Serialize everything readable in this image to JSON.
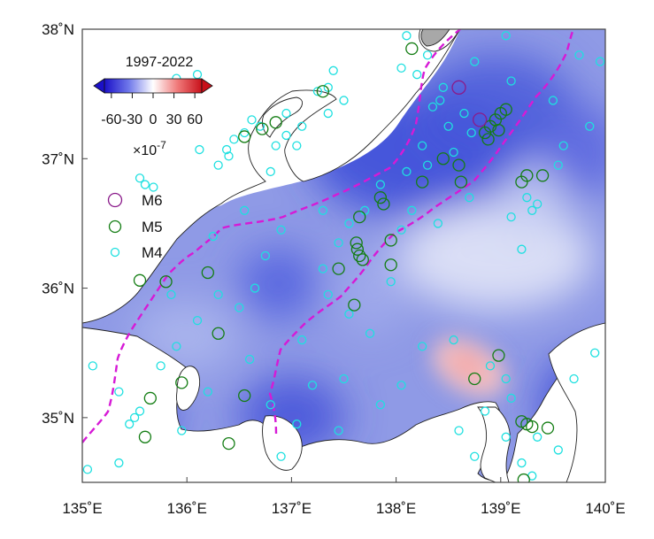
{
  "map": {
    "lon_range": [
      135,
      140
    ],
    "lat_range": [
      34.5,
      38
    ],
    "x_ticks": [
      {
        "value": 135,
        "label": "135˚E"
      },
      {
        "value": 136,
        "label": "136˚E"
      },
      {
        "value": 137,
        "label": "137˚E"
      },
      {
        "value": 138,
        "label": "138˚E"
      },
      {
        "value": 139,
        "label": "139˚E"
      },
      {
        "value": 140,
        "label": "140˚E"
      }
    ],
    "y_ticks": [
      {
        "value": 35,
        "label": "35˚N"
      },
      {
        "value": 36,
        "label": "36˚N"
      },
      {
        "value": 37,
        "label": "37˚N"
      },
      {
        "value": 38,
        "label": "38˚N"
      }
    ],
    "colors": {
      "field_low": "#2b3fd6",
      "field_mid": "#dfe4f7",
      "field_high": "#f3b6b6",
      "land": "#ffffff",
      "coast": "#222222",
      "fault_lines": "#d61ad6",
      "m6": "#8a1a8a",
      "m5": "#137d13",
      "m4": "#1ee0e0"
    }
  },
  "colorbar": {
    "title": "1997-2022",
    "tick_labels": [
      "-60",
      "-30",
      "0",
      "30",
      "60"
    ],
    "tick_values": [
      -60,
      -30,
      0,
      30,
      60
    ],
    "range": [
      -70,
      70
    ],
    "scale_label": "×10",
    "scale_exp": "-7"
  },
  "legend": {
    "items": [
      {
        "label": "M6",
        "color": "#8a1a8a"
      },
      {
        "label": "M5",
        "color": "#137d13"
      },
      {
        "label": "M4",
        "color": "#1ee0e0"
      }
    ]
  },
  "chart_data": {
    "type": "map",
    "title": "1997-2022",
    "colorbar_range": [
      -60,
      60
    ],
    "colorbar_unit": "×10^-7",
    "xlim": [
      135,
      140
    ],
    "ylim": [
      34.5,
      38
    ],
    "strain_field_samples": [
      {
        "lon": 138.3,
        "lat": 37.1,
        "value": -55
      },
      {
        "lon": 138.9,
        "lat": 37.3,
        "value": -45
      },
      {
        "lon": 136.8,
        "lat": 36.1,
        "value": -40
      },
      {
        "lon": 135.4,
        "lat": 35.0,
        "value": -45
      },
      {
        "lon": 137.1,
        "lat": 34.9,
        "value": -45
      },
      {
        "lon": 139.8,
        "lat": 35.0,
        "value": -45
      },
      {
        "lon": 138.7,
        "lat": 35.3,
        "value": 25
      },
      {
        "lon": 139.5,
        "lat": 36.3,
        "value": -5
      },
      {
        "lon": 139.6,
        "lat": 37.3,
        "value": -30
      }
    ],
    "earthquakes_m6": [
      {
        "lon": 138.6,
        "lat": 37.55
      },
      {
        "lon": 138.8,
        "lat": 37.3
      }
    ],
    "earthquakes_m5": [
      {
        "lon": 137.3,
        "lat": 37.52
      },
      {
        "lon": 136.72,
        "lat": 37.23
      },
      {
        "lon": 136.55,
        "lat": 37.17
      },
      {
        "lon": 136.85,
        "lat": 37.28
      },
      {
        "lon": 138.15,
        "lat": 37.85
      },
      {
        "lon": 138.25,
        "lat": 36.82
      },
      {
        "lon": 138.45,
        "lat": 37.0
      },
      {
        "lon": 138.6,
        "lat": 36.95
      },
      {
        "lon": 138.62,
        "lat": 36.82
      },
      {
        "lon": 138.85,
        "lat": 37.2
      },
      {
        "lon": 138.9,
        "lat": 37.25
      },
      {
        "lon": 138.95,
        "lat": 37.3
      },
      {
        "lon": 139.0,
        "lat": 37.35
      },
      {
        "lon": 139.05,
        "lat": 37.38
      },
      {
        "lon": 138.98,
        "lat": 37.22
      },
      {
        "lon": 138.88,
        "lat": 37.15
      },
      {
        "lon": 137.65,
        "lat": 36.55
      },
      {
        "lon": 137.62,
        "lat": 36.35
      },
      {
        "lon": 137.65,
        "lat": 36.25
      },
      {
        "lon": 137.68,
        "lat": 36.22
      },
      {
        "lon": 137.63,
        "lat": 36.3
      },
      {
        "lon": 137.45,
        "lat": 36.15
      },
      {
        "lon": 137.95,
        "lat": 36.18
      },
      {
        "lon": 137.95,
        "lat": 36.37
      },
      {
        "lon": 137.88,
        "lat": 36.65
      },
      {
        "lon": 137.85,
        "lat": 36.7
      },
      {
        "lon": 137.6,
        "lat": 35.87
      },
      {
        "lon": 135.8,
        "lat": 36.05
      },
      {
        "lon": 135.55,
        "lat": 36.06
      },
      {
        "lon": 136.2,
        "lat": 36.12
      },
      {
        "lon": 136.3,
        "lat": 35.65
      },
      {
        "lon": 135.95,
        "lat": 35.27
      },
      {
        "lon": 135.65,
        "lat": 35.15
      },
      {
        "lon": 136.55,
        "lat": 35.17
      },
      {
        "lon": 135.6,
        "lat": 34.85
      },
      {
        "lon": 136.4,
        "lat": 34.8
      },
      {
        "lon": 139.25,
        "lat": 36.87
      },
      {
        "lon": 139.4,
        "lat": 36.87
      },
      {
        "lon": 139.2,
        "lat": 36.82
      },
      {
        "lon": 138.75,
        "lat": 35.3
      },
      {
        "lon": 138.98,
        "lat": 35.48
      },
      {
        "lon": 139.2,
        "lat": 34.97
      },
      {
        "lon": 139.25,
        "lat": 34.95
      },
      {
        "lon": 139.3,
        "lat": 34.93
      },
      {
        "lon": 139.45,
        "lat": 34.92
      },
      {
        "lon": 139.22,
        "lat": 34.52
      }
    ],
    "earthquakes_m4": [
      {
        "lon": 136.55,
        "lat": 37.2
      },
      {
        "lon": 136.62,
        "lat": 37.3
      },
      {
        "lon": 136.7,
        "lat": 37.25
      },
      {
        "lon": 136.45,
        "lat": 37.15
      },
      {
        "lon": 136.38,
        "lat": 37.07
      },
      {
        "lon": 136.4,
        "lat": 37.02
      },
      {
        "lon": 136.12,
        "lat": 37.07
      },
      {
        "lon": 136.95,
        "lat": 37.18
      },
      {
        "lon": 137.1,
        "lat": 37.25
      },
      {
        "lon": 137.25,
        "lat": 37.52
      },
      {
        "lon": 137.35,
        "lat": 37.55
      },
      {
        "lon": 137.4,
        "lat": 37.68
      },
      {
        "lon": 137.35,
        "lat": 37.35
      },
      {
        "lon": 136.85,
        "lat": 37.1
      },
      {
        "lon": 136.8,
        "lat": 36.9
      },
      {
        "lon": 136.3,
        "lat": 36.95
      },
      {
        "lon": 135.55,
        "lat": 36.85
      },
      {
        "lon": 135.6,
        "lat": 36.8
      },
      {
        "lon": 135.68,
        "lat": 36.78
      },
      {
        "lon": 135.9,
        "lat": 37.62
      },
      {
        "lon": 136.1,
        "lat": 37.65
      },
      {
        "lon": 138.1,
        "lat": 37.95
      },
      {
        "lon": 138.3,
        "lat": 37.8
      },
      {
        "lon": 138.2,
        "lat": 37.65
      },
      {
        "lon": 138.45,
        "lat": 37.55
      },
      {
        "lon": 138.35,
        "lat": 37.4
      },
      {
        "lon": 138.5,
        "lat": 37.25
      },
      {
        "lon": 138.25,
        "lat": 37.1
      },
      {
        "lon": 138.3,
        "lat": 36.95
      },
      {
        "lon": 138.1,
        "lat": 36.9
      },
      {
        "lon": 137.85,
        "lat": 36.8
      },
      {
        "lon": 137.7,
        "lat": 36.6
      },
      {
        "lon": 137.55,
        "lat": 36.5
      },
      {
        "lon": 137.45,
        "lat": 36.35
      },
      {
        "lon": 137.3,
        "lat": 36.15
      },
      {
        "lon": 137.35,
        "lat": 35.95
      },
      {
        "lon": 137.55,
        "lat": 35.8
      },
      {
        "lon": 137.75,
        "lat": 35.65
      },
      {
        "lon": 137.95,
        "lat": 36.05
      },
      {
        "lon": 138.05,
        "lat": 36.45
      },
      {
        "lon": 138.15,
        "lat": 36.6
      },
      {
        "lon": 138.4,
        "lat": 36.5
      },
      {
        "lon": 138.7,
        "lat": 36.7
      },
      {
        "lon": 139.1,
        "lat": 36.55
      },
      {
        "lon": 139.35,
        "lat": 36.65
      },
      {
        "lon": 139.2,
        "lat": 36.3
      },
      {
        "lon": 139.5,
        "lat": 37.45
      },
      {
        "lon": 139.85,
        "lat": 37.25
      },
      {
        "lon": 139.6,
        "lat": 37.1
      },
      {
        "lon": 139.55,
        "lat": 36.95
      },
      {
        "lon": 139.95,
        "lat": 37.75
      },
      {
        "lon": 139.75,
        "lat": 37.8
      },
      {
        "lon": 139.05,
        "lat": 37.95
      },
      {
        "lon": 138.75,
        "lat": 37.75
      },
      {
        "lon": 136.9,
        "lat": 36.45
      },
      {
        "lon": 136.75,
        "lat": 36.25
      },
      {
        "lon": 136.65,
        "lat": 36.0
      },
      {
        "lon": 136.5,
        "lat": 35.85
      },
      {
        "lon": 136.3,
        "lat": 35.95
      },
      {
        "lon": 136.1,
        "lat": 35.75
      },
      {
        "lon": 135.9,
        "lat": 35.55
      },
      {
        "lon": 135.75,
        "lat": 35.4
      },
      {
        "lon": 135.55,
        "lat": 35.05
      },
      {
        "lon": 135.5,
        "lat": 35.0
      },
      {
        "lon": 135.45,
        "lat": 34.95
      },
      {
        "lon": 135.35,
        "lat": 35.2
      },
      {
        "lon": 135.1,
        "lat": 35.4
      },
      {
        "lon": 135.05,
        "lat": 34.6
      },
      {
        "lon": 135.95,
        "lat": 34.9
      },
      {
        "lon": 136.2,
        "lat": 35.2
      },
      {
        "lon": 136.8,
        "lat": 35.1
      },
      {
        "lon": 137.05,
        "lat": 34.95
      },
      {
        "lon": 137.2,
        "lat": 35.25
      },
      {
        "lon": 137.5,
        "lat": 35.3
      },
      {
        "lon": 137.85,
        "lat": 35.1
      },
      {
        "lon": 138.05,
        "lat": 35.25
      },
      {
        "lon": 138.25,
        "lat": 35.55
      },
      {
        "lon": 138.55,
        "lat": 35.6
      },
      {
        "lon": 138.9,
        "lat": 35.4
      },
      {
        "lon": 139.05,
        "lat": 35.3
      },
      {
        "lon": 139.1,
        "lat": 35.15
      },
      {
        "lon": 138.85,
        "lat": 35.05
      },
      {
        "lon": 138.6,
        "lat": 34.9
      },
      {
        "lon": 138.75,
        "lat": 34.7
      },
      {
        "lon": 139.05,
        "lat": 34.85
      },
      {
        "lon": 139.35,
        "lat": 34.85
      },
      {
        "lon": 139.2,
        "lat": 34.65
      },
      {
        "lon": 139.3,
        "lat": 34.55
      },
      {
        "lon": 139.55,
        "lat": 34.75
      },
      {
        "lon": 139.7,
        "lat": 35.3
      },
      {
        "lon": 139.9,
        "lat": 35.5
      },
      {
        "lon": 137.45,
        "lat": 34.9
      },
      {
        "lon": 136.9,
        "lat": 34.7
      },
      {
        "lon": 135.35,
        "lat": 34.65
      },
      {
        "lon": 135.85,
        "lat": 35.95
      },
      {
        "lon": 136.6,
        "lat": 35.45
      },
      {
        "lon": 137.1,
        "lat": 35.6
      },
      {
        "lon": 137.3,
        "lat": 36.6
      },
      {
        "lon": 136.55,
        "lat": 36.6
      },
      {
        "lon": 136.25,
        "lat": 36.4
      },
      {
        "lon": 138.65,
        "lat": 37.35
      },
      {
        "lon": 138.72,
        "lat": 37.2
      },
      {
        "lon": 138.55,
        "lat": 37.05
      },
      {
        "lon": 139.1,
        "lat": 37.6
      },
      {
        "lon": 139.25,
        "lat": 36.7
      },
      {
        "lon": 139.3,
        "lat": 36.6
      },
      {
        "lon": 138.05,
        "lat": 37.7
      },
      {
        "lon": 137.05,
        "lat": 37.1
      },
      {
        "lon": 136.95,
        "lat": 37.35
      },
      {
        "lon": 138.42,
        "lat": 37.45
      },
      {
        "lon": 137.5,
        "lat": 37.45
      }
    ]
  }
}
